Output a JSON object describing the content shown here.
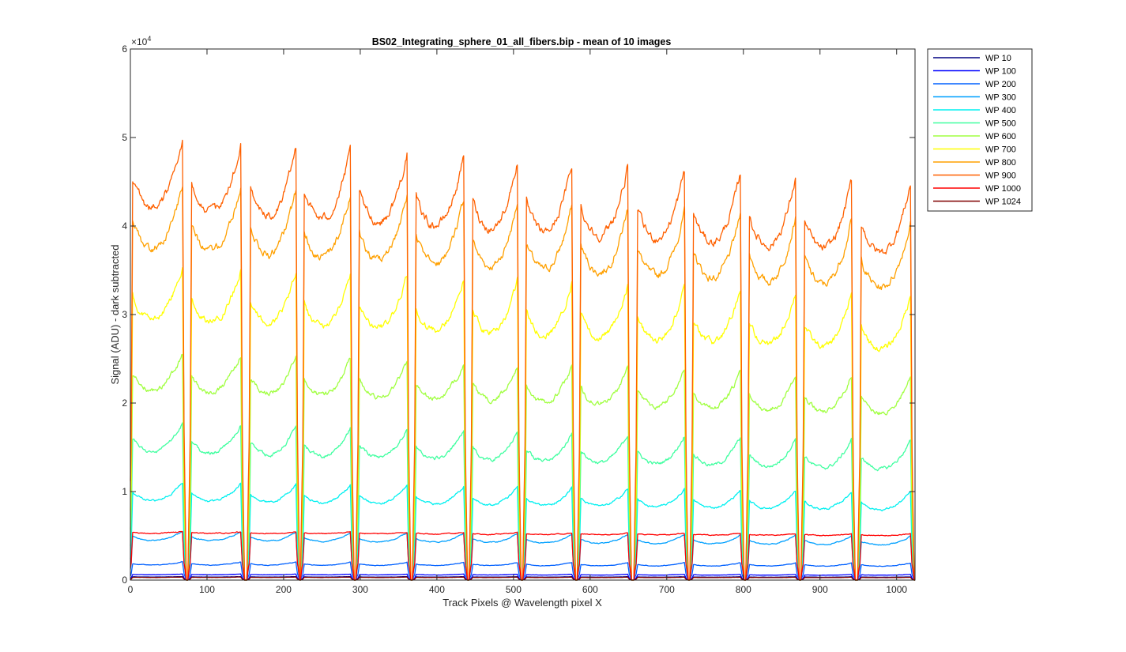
{
  "chart_data": {
    "type": "line",
    "title": "BS02_Integrating_sphere_01_all_fibers.bip - mean of 10 images",
    "xlabel": "Track Pixels @ Wavelength pixel X",
    "ylabel": "Signal (ADU) - dark subtracted",
    "xlim": [
      0,
      1024
    ],
    "ylim": [
      0,
      60000
    ],
    "y_exponent_label": "×10",
    "y_exponent_power": "4",
    "x_ticks": [
      0,
      100,
      200,
      300,
      400,
      500,
      600,
      700,
      800,
      900,
      1000
    ],
    "x_tick_labels": [
      "0",
      "100",
      "200",
      "300",
      "400",
      "500",
      "600",
      "700",
      "800",
      "900",
      "1000"
    ],
    "y_ticks": [
      0,
      10000,
      20000,
      30000,
      40000,
      50000,
      60000
    ],
    "y_tick_labels": [
      "0",
      "1",
      "2",
      "3",
      "4",
      "5",
      "6"
    ],
    "legend_position": "outside-top-right",
    "fiber_blocks": [
      {
        "start": 1,
        "end": 70
      },
      {
        "start": 78,
        "end": 146
      },
      {
        "start": 155,
        "end": 218
      },
      {
        "start": 225,
        "end": 289
      },
      {
        "start": 297,
        "end": 363
      },
      {
        "start": 371,
        "end": 437
      },
      {
        "start": 445,
        "end": 507
      },
      {
        "start": 515,
        "end": 578
      },
      {
        "start": 586,
        "end": 651
      },
      {
        "start": 660,
        "end": 725
      },
      {
        "start": 733,
        "end": 798
      },
      {
        "start": 806,
        "end": 870
      },
      {
        "start": 878,
        "end": 943
      },
      {
        "start": 952,
        "end": 1020
      }
    ],
    "series": [
      {
        "name": "WP 10",
        "color": "#000080",
        "edge_peak": 400,
        "mid_level": 350,
        "slope_per_block": -2,
        "noise": 20,
        "edge_boost": 0
      },
      {
        "name": "WP 100",
        "color": "#0000ff",
        "edge_peak": 700,
        "mid_level": 600,
        "slope_per_block": -4,
        "noise": 30,
        "edge_boost": 0
      },
      {
        "name": "WP 200",
        "color": "#0060ff",
        "edge_peak": 2100,
        "mid_level": 1700,
        "slope_per_block": -10,
        "noise": 80,
        "edge_boost": 0
      },
      {
        "name": "WP 300",
        "color": "#00a0ff",
        "edge_peak": 5600,
        "mid_level": 4500,
        "slope_per_block": -40,
        "noise": 150,
        "edge_boost": 0
      },
      {
        "name": "WP 400",
        "color": "#00f0f0",
        "edge_peak": 11200,
        "mid_level": 9000,
        "slope_per_block": -80,
        "noise": 300,
        "edge_boost": 0
      },
      {
        "name": "WP 500",
        "color": "#40ffa0",
        "edge_peak": 18000,
        "mid_level": 14500,
        "slope_per_block": -150,
        "noise": 500,
        "edge_boost": 0
      },
      {
        "name": "WP 600",
        "color": "#a0ff40",
        "edge_peak": 26000,
        "mid_level": 21500,
        "slope_per_block": -200,
        "noise": 700,
        "edge_boost": 0
      },
      {
        "name": "WP 700",
        "color": "#ffff00",
        "edge_peak": 36000,
        "mid_level": 29500,
        "slope_per_block": -260,
        "noise": 900,
        "edge_boost": 0
      },
      {
        "name": "WP 800",
        "color": "#ffa000",
        "edge_peak": 45500,
        "mid_level": 37500,
        "slope_per_block": -340,
        "noise": 1100,
        "edge_boost": 0
      },
      {
        "name": "WP 900",
        "color": "#ff6000",
        "edge_peak": 50500,
        "mid_level": 42000,
        "slope_per_block": -380,
        "noise": 1200,
        "edge_boost": 0
      },
      {
        "name": "WP 1000",
        "color": "#ff0000",
        "edge_peak": 5500,
        "mid_level": 5300,
        "slope_per_block": -20,
        "noise": 120,
        "edge_boost": 0
      },
      {
        "name": "WP 1024",
        "color": "#800000",
        "edge_peak": 350,
        "mid_level": 300,
        "slope_per_block": -2,
        "noise": 20,
        "edge_boost": 0
      }
    ]
  }
}
